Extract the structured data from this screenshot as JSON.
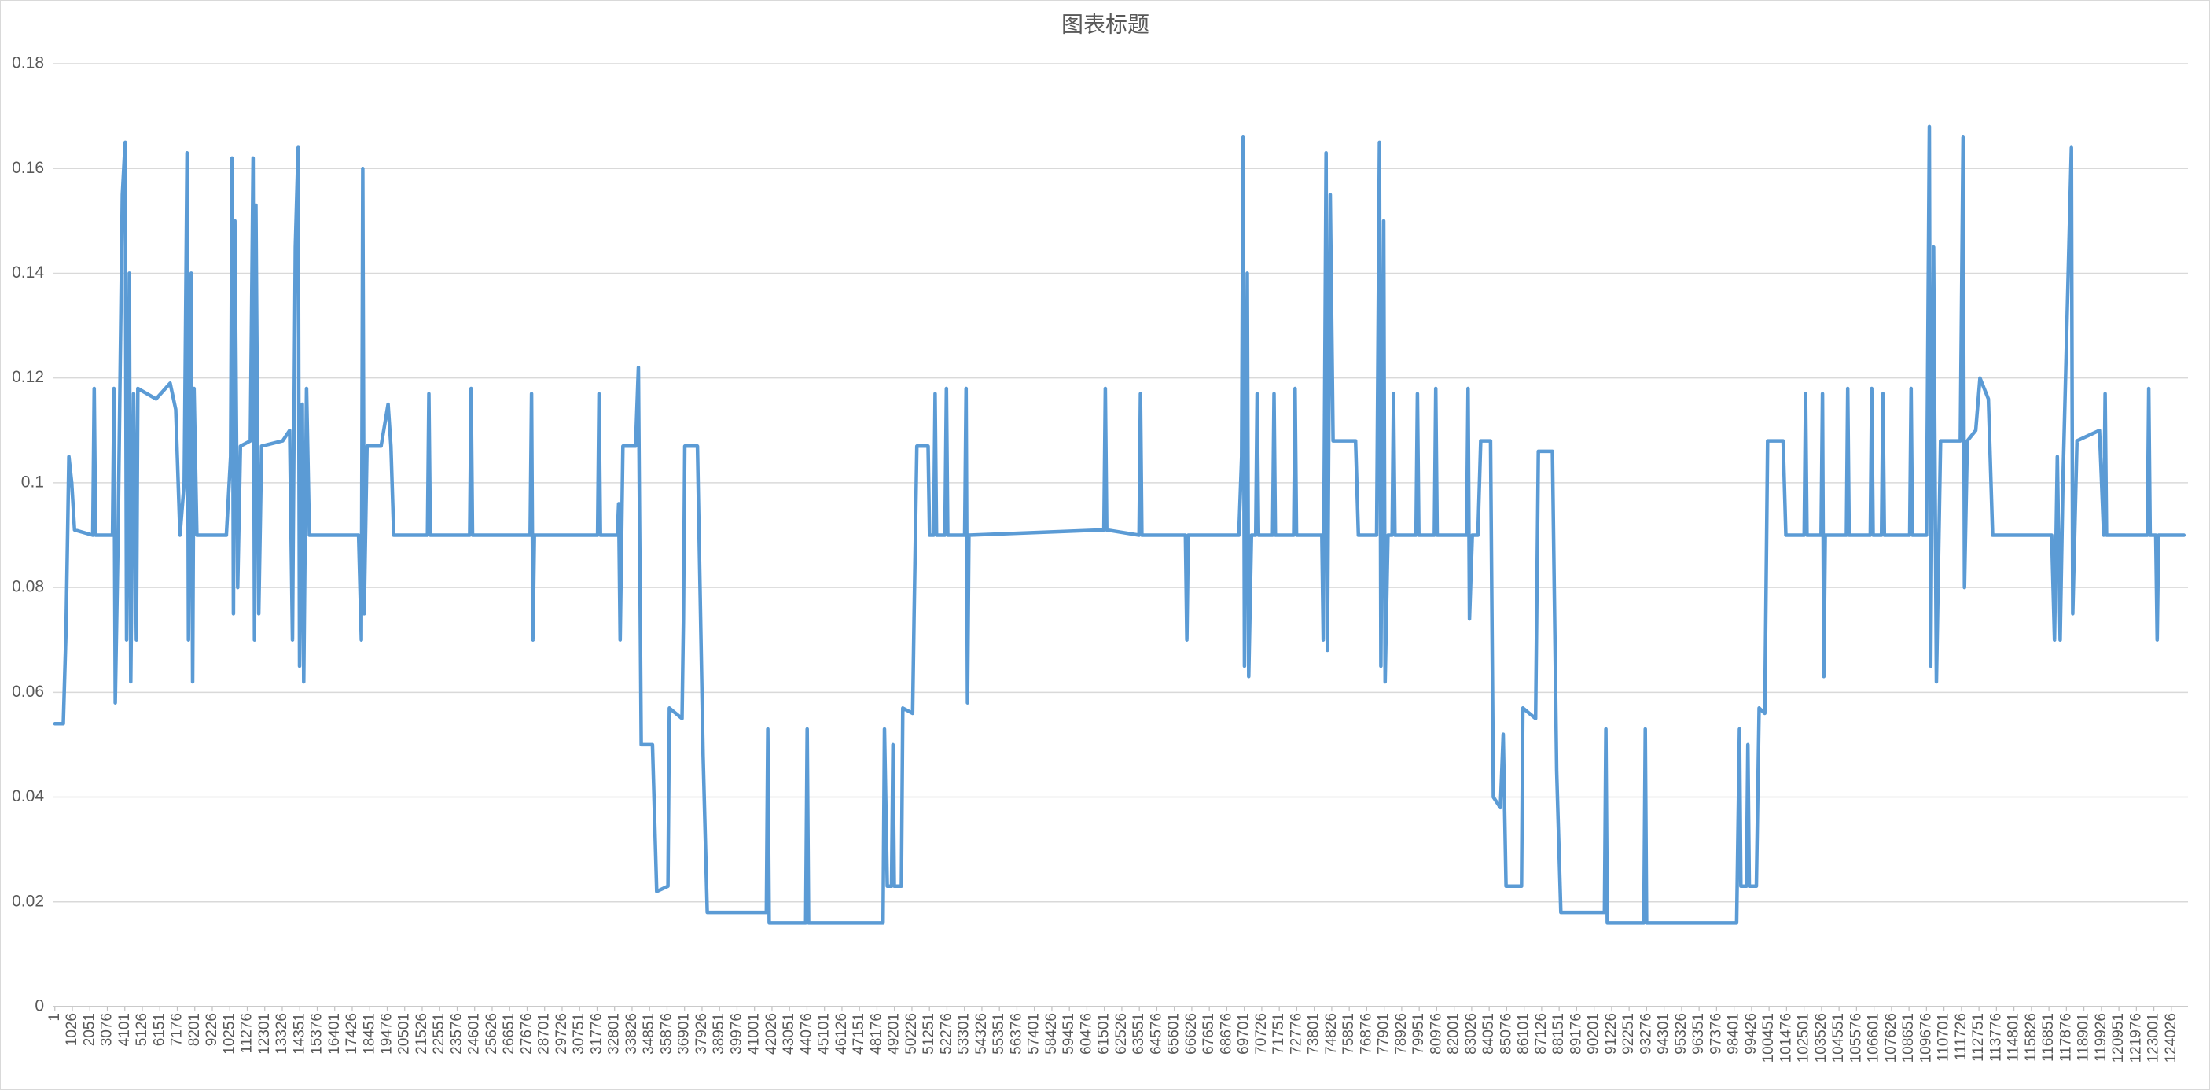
{
  "chart_data": {
    "type": "line",
    "title": "图表标题",
    "color": "#5b9bd5",
    "xlim": [
      -80,
      125000
    ],
    "ylim": [
      0,
      0.18
    ],
    "yticks": [
      0,
      0.02,
      0.04,
      0.06,
      0.08,
      0.1,
      0.12,
      0.14,
      0.16,
      0.18
    ],
    "grid": true,
    "xticks": [
      1,
      1026,
      2051,
      3076,
      4101,
      5126,
      6151,
      7176,
      8201,
      9226,
      10251,
      11276,
      12301,
      13326,
      14351,
      15376,
      16401,
      17426,
      18451,
      19476,
      20501,
      21526,
      22551,
      23576,
      24601,
      25626,
      26651,
      27676,
      28701,
      29726,
      30751,
      31776,
      32801,
      33826,
      34851,
      35876,
      36901,
      37926,
      38951,
      39976,
      41001,
      42026,
      43051,
      44076,
      45101,
      46126,
      47151,
      48176,
      49201,
      50226,
      51251,
      52276,
      53301,
      54326,
      55351,
      56376,
      57401,
      58426,
      59451,
      60476,
      61501,
      62526,
      63551,
      64576,
      65601,
      66626,
      67651,
      68676,
      69701,
      70726,
      71751,
      72776,
      73801,
      74826,
      75851,
      76876,
      77901,
      78926,
      79951,
      80976,
      82001,
      83026,
      84051,
      85076,
      86101,
      87126,
      88151,
      89176,
      90201,
      91226,
      92251,
      93276,
      94301,
      95326,
      96351,
      97376,
      98401,
      99426,
      100451,
      101476,
      102501,
      103526,
      104551,
      105576,
      106601,
      107626,
      108651,
      109676,
      110701,
      111726,
      112751,
      113776,
      114801,
      115826,
      116851,
      117876,
      118901,
      119926,
      120951,
      121976,
      123001,
      124026
    ],
    "x": [
      1,
      494,
      659,
      824,
      989,
      1154,
      2225,
      2307,
      2390,
      3378,
      3461,
      3543,
      3708,
      3955,
      4120,
      4203,
      4367,
      4450,
      4614,
      4779,
      4862,
      5933,
      6757,
      7086,
      7334,
      7581,
      7746,
      7828,
      7993,
      8075,
      8158,
      8323,
      10053,
      10300,
      10382,
      10465,
      10547,
      10712,
      10877,
      11454,
      11618,
      11701,
      11783,
      11948,
      12113,
      13349,
      13761,
      13926,
      14091,
      14256,
      14338,
      14503,
      14585,
      14750,
      14915,
      17798,
      17963,
      18046,
      18128,
      18293,
      19117,
      19529,
      19694,
      19859,
      21836,
      21919,
      22002,
      24309,
      24391,
      24474,
      27852,
      27935,
      28018,
      28101,
      31806,
      31888,
      31971,
      32960,
      33042,
      33125,
      33290,
      34032,
      34197,
      34362,
      35021,
      35268,
      35927,
      36010,
      36751,
      36834,
      36916,
      37658,
      37987,
      38234,
      41695,
      41777,
      41860,
      44002,
      44085,
      44168,
      48534,
      48617,
      48782,
      49029,
      49112,
      49194,
      49606,
      49689,
      50266,
      50348,
      50513,
      51172,
      51255,
      51502,
      51584,
      51667,
      52161,
      52244,
      52326,
      53315,
      53397,
      53480,
      53563,
      61473,
      61555,
      61638,
      63533,
      63616,
      63698,
      66253,
      66335,
      66418,
      69381,
      69546,
      69629,
      69711,
      69876,
      69958,
      70123,
      70370,
      70453,
      70535,
      71359,
      71442,
      71524,
      72596,
      72678,
      72761,
      74244,
      74327,
      74492,
      74574,
      74739,
      74904,
      76222,
      76387,
      77458,
      77623,
      77706,
      77870,
      77953,
      78118,
      78365,
      78447,
      78530,
      79766,
      79849,
      79931,
      80838,
      80920,
      81003,
      82730,
      82813,
      82896,
      83061,
      83390,
      83555,
      84132,
      84297,
      84709,
      84874,
      85038,
      85945,
      86027,
      86769,
      86934,
      87758,
      88005,
      88252,
      90806,
      90889,
      90971,
      93114,
      93196,
      93278,
      98552,
      98717,
      98800,
      99129,
      99212,
      99294,
      99706,
      99871,
      100201,
      100366,
      101272,
      101437,
      102508,
      102591,
      102673,
      103497,
      103580,
      103662,
      103745,
      104981,
      105063,
      105146,
      106382,
      106464,
      106547,
      107041,
      107123,
      107206,
      108689,
      108772,
      108854,
      109678,
      109843,
      109926,
      110091,
      110256,
      110503,
      111657,
      111821,
      111904,
      112069,
      112563,
      112810,
      113305,
      113552,
      117013,
      117178,
      117342,
      117507,
      117672,
      118166,
      118248,
      118496,
      119814,
      120062,
      120144,
      120227,
      122617,
      122699,
      122782,
      123111,
      123194,
      123276,
      124760
    ],
    "values": [
      0.054,
      0.054,
      0.072,
      0.105,
      0.1,
      0.091,
      0.09,
      0.118,
      0.09,
      0.09,
      0.118,
      0.058,
      0.09,
      0.155,
      0.165,
      0.07,
      0.14,
      0.062,
      0.117,
      0.07,
      0.118,
      0.116,
      0.119,
      0.114,
      0.09,
      0.1,
      0.163,
      0.07,
      0.14,
      0.062,
      0.118,
      0.09,
      0.09,
      0.105,
      0.162,
      0.075,
      0.15,
      0.08,
      0.107,
      0.108,
      0.162,
      0.07,
      0.153,
      0.075,
      0.107,
      0.108,
      0.11,
      0.07,
      0.145,
      0.164,
      0.065,
      0.115,
      0.062,
      0.118,
      0.09,
      0.09,
      0.07,
      0.16,
      0.075,
      0.107,
      0.107,
      0.115,
      0.107,
      0.09,
      0.09,
      0.117,
      0.09,
      0.09,
      0.118,
      0.09,
      0.09,
      0.117,
      0.07,
      0.09,
      0.09,
      0.117,
      0.09,
      0.09,
      0.096,
      0.07,
      0.107,
      0.107,
      0.122,
      0.05,
      0.05,
      0.022,
      0.023,
      0.057,
      0.055,
      0.074,
      0.107,
      0.107,
      0.048,
      0.018,
      0.018,
      0.053,
      0.016,
      0.016,
      0.053,
      0.016,
      0.016,
      0.053,
      0.023,
      0.023,
      0.05,
      0.023,
      0.023,
      0.057,
      0.056,
      0.074,
      0.107,
      0.107,
      0.09,
      0.09,
      0.117,
      0.09,
      0.09,
      0.118,
      0.09,
      0.09,
      0.118,
      0.058,
      0.09,
      0.091,
      0.118,
      0.091,
      0.09,
      0.117,
      0.09,
      0.09,
      0.07,
      0.09,
      0.09,
      0.105,
      0.166,
      0.065,
      0.14,
      0.063,
      0.09,
      0.09,
      0.117,
      0.09,
      0.09,
      0.117,
      0.09,
      0.09,
      0.118,
      0.09,
      0.09,
      0.07,
      0.163,
      0.068,
      0.155,
      0.108,
      0.108,
      0.09,
      0.09,
      0.165,
      0.065,
      0.15,
      0.062,
      0.09,
      0.09,
      0.117,
      0.09,
      0.09,
      0.117,
      0.09,
      0.09,
      0.118,
      0.09,
      0.09,
      0.118,
      0.074,
      0.09,
      0.09,
      0.108,
      0.108,
      0.04,
      0.038,
      0.052,
      0.023,
      0.023,
      0.057,
      0.055,
      0.106,
      0.106,
      0.045,
      0.018,
      0.018,
      0.053,
      0.016,
      0.016,
      0.053,
      0.016,
      0.016,
      0.053,
      0.023,
      0.023,
      0.05,
      0.023,
      0.023,
      0.057,
      0.056,
      0.108,
      0.108,
      0.09,
      0.09,
      0.117,
      0.09,
      0.09,
      0.117,
      0.063,
      0.09,
      0.09,
      0.118,
      0.09,
      0.09,
      0.118,
      0.09,
      0.09,
      0.117,
      0.09,
      0.09,
      0.118,
      0.09,
      0.09,
      0.168,
      0.065,
      0.145,
      0.062,
      0.108,
      0.108,
      0.166,
      0.08,
      0.108,
      0.11,
      0.12,
      0.116,
      0.09,
      0.09,
      0.07,
      0.105,
      0.07,
      0.1,
      0.164,
      0.075,
      0.108,
      0.11,
      0.09,
      0.117,
      0.09,
      0.09,
      0.118,
      0.09,
      0.09,
      0.07,
      0.09,
      0.09
    ]
  }
}
